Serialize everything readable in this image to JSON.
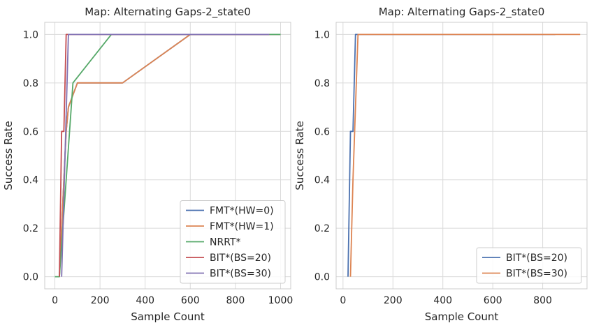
{
  "chart_data": [
    {
      "type": "line",
      "title": "Map: Alternating Gaps-2_state0",
      "xlabel": "Sample Count",
      "ylabel": "Success Rate",
      "xlim": [
        -45,
        1045
      ],
      "ylim": [
        -0.05,
        1.05
      ],
      "xticks": [
        0,
        200,
        400,
        600,
        800,
        1000
      ],
      "yticks": [
        0.0,
        0.2,
        0.4,
        0.6,
        0.8,
        1.0
      ],
      "xtick_labels": [
        "0",
        "200",
        "400",
        "600",
        "800",
        "1000"
      ],
      "ytick_labels": [
        "0.0",
        "0.2",
        "0.4",
        "0.6",
        "0.8",
        "1.0"
      ],
      "grid": true,
      "legend_position": "lower-right",
      "series": [
        {
          "name": "FMT*(HW=0)",
          "color": "#4c72b0",
          "x": [
            20,
            30,
            40,
            50,
            60,
            100,
            300,
            600,
            1000
          ],
          "y": [
            0.0,
            0.2,
            0.4,
            0.6,
            0.7,
            0.8,
            0.8,
            1.0,
            1.0
          ]
        },
        {
          "name": "FMT*(HW=1)",
          "color": "#dd8452",
          "x": [
            20,
            30,
            40,
            50,
            60,
            100,
            300,
            600,
            1000
          ],
          "y": [
            0.0,
            0.2,
            0.4,
            0.6,
            0.7,
            0.8,
            0.8,
            1.0,
            1.0
          ]
        },
        {
          "name": "NRRT*",
          "color": "#55a868",
          "x": [
            0,
            20,
            80,
            250,
            1000
          ],
          "y": [
            0.0,
            0.0,
            0.8,
            1.0,
            1.0
          ]
        },
        {
          "name": "BIT*(BS=20)",
          "color": "#c44e52",
          "x": [
            20,
            30,
            40,
            50,
            950
          ],
          "y": [
            0.0,
            0.6,
            0.6,
            1.0,
            1.0
          ]
        },
        {
          "name": "BIT*(BS=30)",
          "color": "#8172b3",
          "x": [
            30,
            60,
            950
          ],
          "y": [
            0.0,
            1.0,
            1.0
          ]
        }
      ]
    },
    {
      "type": "line",
      "title": "Map: Alternating Gaps-2_state0",
      "xlabel": "Sample Count",
      "ylabel": "Success Rate",
      "xlim": [
        -27.5,
        977.5
      ],
      "ylim": [
        -0.05,
        1.05
      ],
      "xticks": [
        0,
        200,
        400,
        600,
        800
      ],
      "yticks": [
        0.0,
        0.2,
        0.4,
        0.6,
        0.8,
        1.0
      ],
      "xtick_labels": [
        "0",
        "200",
        "400",
        "600",
        "800"
      ],
      "ytick_labels": [
        "0.0",
        "0.2",
        "0.4",
        "0.6",
        "0.8",
        "1.0"
      ],
      "grid": true,
      "legend_position": "lower-right",
      "series": [
        {
          "name": "BIT*(BS=20)",
          "color": "#4c72b0",
          "x": [
            20,
            30,
            40,
            50,
            850
          ],
          "y": [
            0.0,
            0.6,
            0.6,
            1.0,
            1.0
          ]
        },
        {
          "name": "BIT*(BS=30)",
          "color": "#dd8452",
          "x": [
            30,
            40,
            60,
            950
          ],
          "y": [
            0.0,
            0.4,
            1.0,
            1.0
          ]
        }
      ]
    }
  ]
}
